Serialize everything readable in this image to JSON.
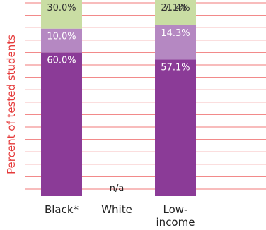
{
  "chart_data": {
    "type": "bar",
    "stacked": true,
    "orientation": "vertical",
    "ylabel": "Percent of tested students",
    "categories": [
      "Black*",
      "White",
      "Low-\nincome"
    ],
    "ylim": [
      0,
      100
    ],
    "grid": true,
    "series": [
      {
        "values": [
          60.0,
          null,
          57.1
        ],
        "labels": [
          "60.0%",
          "",
          "57.1%"
        ]
      },
      {
        "values": [
          10.0,
          null,
          14.3
        ],
        "labels": [
          "10.0%",
          "",
          "14.3%"
        ]
      },
      {
        "values": [
          30.0,
          null,
          21.4
        ],
        "labels": [
          "30.0%",
          "",
          "21.4%"
        ]
      },
      {
        "values": [
          null,
          null,
          7.1
        ],
        "labels": [
          "",
          "",
          "7.1%"
        ]
      }
    ],
    "missing_label": "n/a",
    "colors": {
      "series": [
        "#8b3b97",
        "#b588c2",
        "#c9dda3",
        "#8fc440"
      ],
      "grid": "#f07a7a",
      "ylabel": "#e53b3b",
      "bar_text_dark": "#333333",
      "bar_text_light": "#ffffff",
      "axis_text": "#222222"
    }
  }
}
